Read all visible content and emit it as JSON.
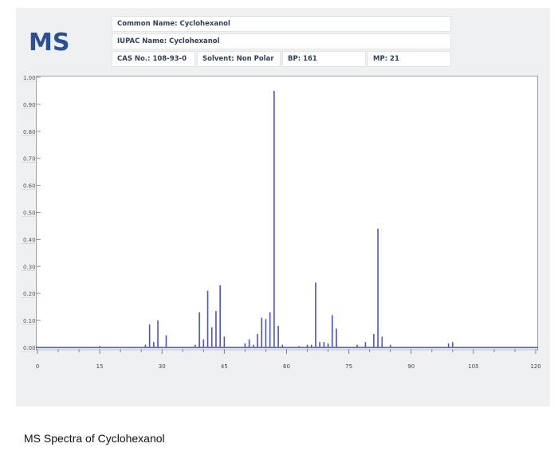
{
  "header": {
    "logo": "MS",
    "common_name": "Common Name: Cyclohexanol",
    "iupac_name": "IUPAC Name: Cyclohexanol",
    "cas_no": "CAS No.: 108-93-0",
    "solvent": "Solvent: Non Polar",
    "bp": "BP: 161",
    "mp": "MP: 21"
  },
  "caption": "MS Spectra of Cyclohexanol",
  "chart_data": {
    "type": "bar",
    "title": "",
    "xlabel": "",
    "ylabel": "",
    "xlim": [
      0,
      120
    ],
    "ylim": [
      0,
      1.0
    ],
    "x_ticks": [
      0,
      15,
      30,
      45,
      60,
      75,
      90,
      105,
      120
    ],
    "y_ticks": [
      "0.00",
      "0.10",
      "0.20",
      "0.30",
      "0.40",
      "0.50",
      "0.60",
      "0.70",
      "0.80",
      "0.90",
      "1.00"
    ],
    "bar_color": "#4a52c4",
    "baseline_color": "#5a5fd0",
    "x": [
      15,
      26,
      27,
      28,
      29,
      31,
      38,
      39,
      40,
      41,
      42,
      43,
      44,
      45,
      50,
      51,
      52,
      53,
      54,
      55,
      56,
      57,
      58,
      59,
      63,
      65,
      66,
      67,
      68,
      69,
      70,
      71,
      72,
      77,
      79,
      81,
      82,
      83,
      85,
      99,
      100
    ],
    "values": [
      0.005,
      0.01,
      0.085,
      0.02,
      0.1,
      0.045,
      0.01,
      0.13,
      0.03,
      0.21,
      0.075,
      0.135,
      0.23,
      0.04,
      0.015,
      0.03,
      0.01,
      0.05,
      0.11,
      0.105,
      0.13,
      0.95,
      0.08,
      0.01,
      0.005,
      0.01,
      0.01,
      0.24,
      0.02,
      0.02,
      0.015,
      0.12,
      0.07,
      0.01,
      0.02,
      0.05,
      0.44,
      0.04,
      0.01,
      0.015,
      0.02
    ]
  }
}
